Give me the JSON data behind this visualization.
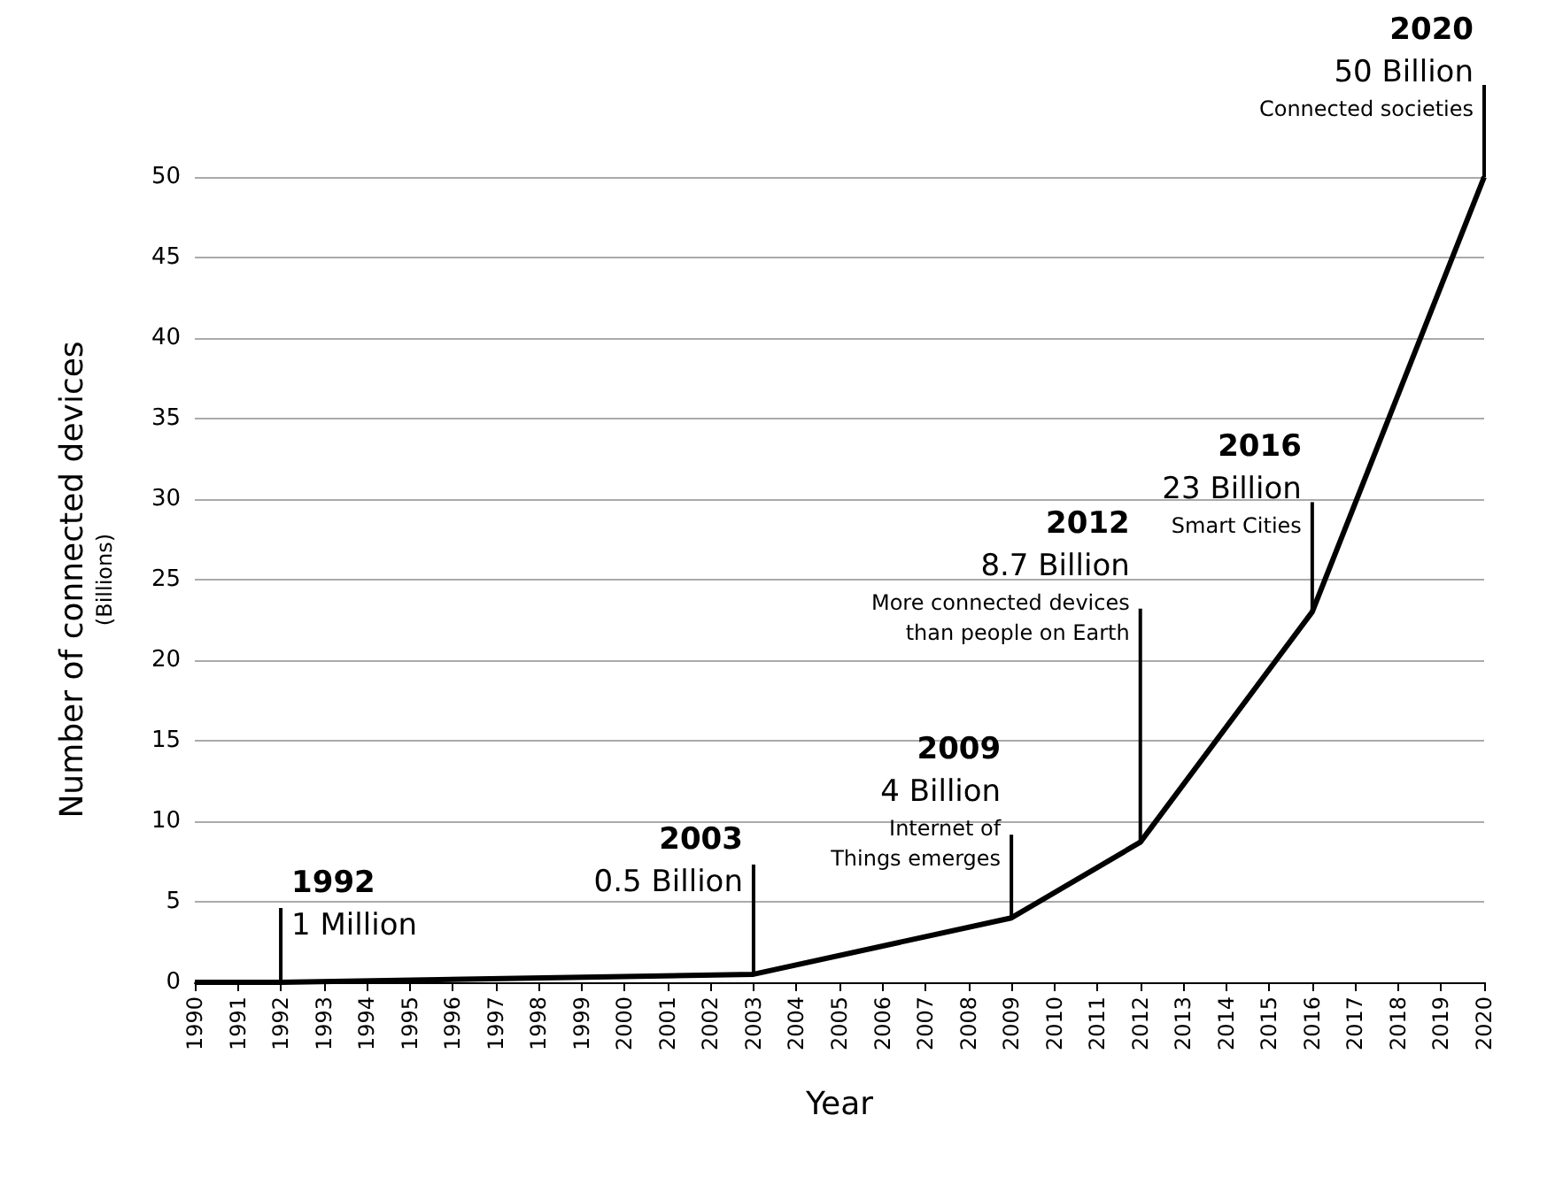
{
  "chart_data": {
    "type": "line",
    "xlabel": "Year",
    "ylabel": "Number of connected devices\n(Billions)",
    "x": [
      1990,
      1992,
      2003,
      2009,
      2012,
      2016,
      2020
    ],
    "series": [
      {
        "color": "#000000",
        "values": [
          0,
          0,
          0.5,
          4,
          8.7,
          23,
          50
        ]
      }
    ],
    "xlim": [
      1990,
      2020
    ],
    "xticks": [
      1990,
      1991,
      1992,
      1993,
      1994,
      1995,
      1996,
      1997,
      1998,
      1999,
      2000,
      2001,
      2002,
      2003,
      2004,
      2005,
      2006,
      2007,
      2008,
      2009,
      2010,
      2011,
      2012,
      2013,
      2014,
      2015,
      2016,
      2017,
      2018,
      2019,
      2020
    ],
    "ylim": [
      0,
      50
    ],
    "yticks": [
      0,
      5,
      10,
      15,
      20,
      25,
      30,
      35,
      40,
      45,
      50
    ],
    "grid": "y",
    "marker": "none",
    "line_style": "solid",
    "annotations": [
      {
        "text": "1992\n1 Million",
        "x": 1992,
        "y": 0
      },
      {
        "text": "2003\n0.5 Billion",
        "x": 2003,
        "y": 0.5
      },
      {
        "text": "2009\n4 Billion\nInternet of\nThings emerges",
        "x": 2009,
        "y": 4
      },
      {
        "text": "2012\n8.7 Billion\nMore connected devices\nthan people on Earth",
        "x": 2012,
        "y": 8.7
      },
      {
        "text": "2016\n23 Billion\nSmart Cities",
        "x": 2016,
        "y": 23
      },
      {
        "text": "2020\n50 Billion\nConnected societies",
        "x": 2020,
        "y": 50
      }
    ]
  }
}
